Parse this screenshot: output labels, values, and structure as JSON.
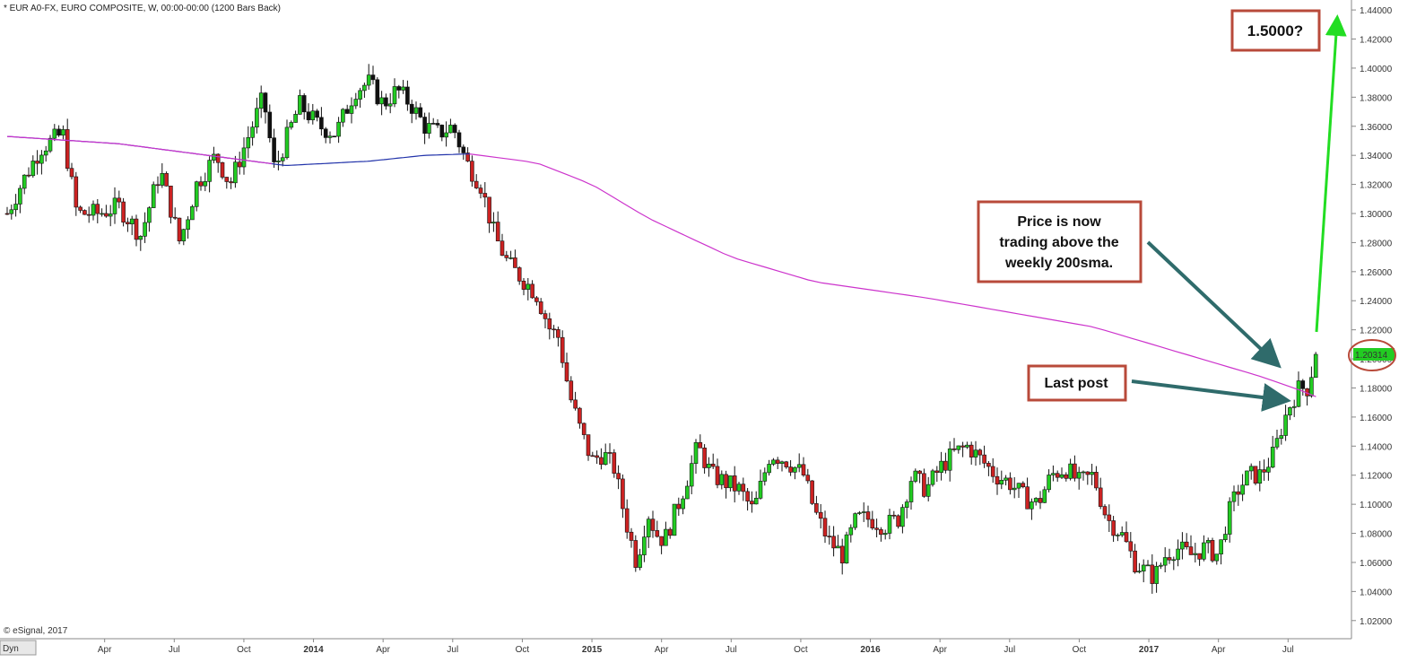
{
  "header": {
    "title": "* EUR A0-FX, EURO COMPOSITE, W, 00:00-00:00 (1200 Bars Back)"
  },
  "footer": {
    "copyright": "© eSignal, 2017",
    "dyn_label": "Dyn"
  },
  "price_tag": {
    "value": "1.20314"
  },
  "colors": {
    "up": "#22cc22",
    "down": "#cc2222",
    "sma_above": "#cc33cc",
    "sma_below": "#2233aa",
    "arrow_teal": "#2f6b6b",
    "arrow_green": "#22dd22",
    "callout_border": "#b84a3a"
  },
  "annotations": {
    "target": "1.5000?",
    "price_note": [
      "Price is now",
      "trading above the",
      "weekly 200sma."
    ],
    "last_post": "Last post"
  },
  "chart_data": {
    "type": "candlestick",
    "title": "* EUR A0-FX, EURO COMPOSITE, W, 00:00-00:00 (1200 Bars Back)",
    "ylim": [
      1.01,
      1.445
    ],
    "y_ticks": [
      "1.44000",
      "1.42000",
      "1.40000",
      "1.38000",
      "1.36000",
      "1.34000",
      "1.32000",
      "1.30000",
      "1.28000",
      "1.26000",
      "1.24000",
      "1.22000",
      "1.20000",
      "1.18000",
      "1.16000",
      "1.14000",
      "1.12000",
      "1.10000",
      "1.08000",
      "1.06000",
      "1.04000",
      "1.02000"
    ],
    "x_ticks": [
      {
        "label": "Apr",
        "t": 0.35,
        "bold": false
      },
      {
        "label": "Jul",
        "t": 0.6,
        "bold": false
      },
      {
        "label": "Oct",
        "t": 0.85,
        "bold": false
      },
      {
        "label": "2014",
        "t": 1.1,
        "bold": true
      },
      {
        "label": "Apr",
        "t": 1.35,
        "bold": false
      },
      {
        "label": "Jul",
        "t": 1.6,
        "bold": false
      },
      {
        "label": "Oct",
        "t": 1.85,
        "bold": false
      },
      {
        "label": "2015",
        "t": 2.1,
        "bold": true
      },
      {
        "label": "Apr",
        "t": 2.35,
        "bold": false
      },
      {
        "label": "Jul",
        "t": 2.6,
        "bold": false
      },
      {
        "label": "Oct",
        "t": 2.85,
        "bold": false
      },
      {
        "label": "2016",
        "t": 3.1,
        "bold": true
      },
      {
        "label": "Apr",
        "t": 3.35,
        "bold": false
      },
      {
        "label": "Jul",
        "t": 3.6,
        "bold": false
      },
      {
        "label": "Oct",
        "t": 3.85,
        "bold": false
      },
      {
        "label": "2017",
        "t": 4.1,
        "bold": true
      },
      {
        "label": "Apr",
        "t": 4.35,
        "bold": false
      },
      {
        "label": "Jul",
        "t": 4.6,
        "bold": false
      }
    ],
    "close_path": [
      [
        0.0,
        1.3
      ],
      [
        0.05,
        1.32
      ],
      [
        0.12,
        1.345
      ],
      [
        0.2,
        1.355
      ],
      [
        0.25,
        1.3
      ],
      [
        0.33,
        1.3
      ],
      [
        0.4,
        1.305
      ],
      [
        0.48,
        1.285
      ],
      [
        0.55,
        1.33
      ],
      [
        0.62,
        1.28
      ],
      [
        0.68,
        1.32
      ],
      [
        0.75,
        1.34
      ],
      [
        0.8,
        1.32
      ],
      [
        0.88,
        1.36
      ],
      [
        0.92,
        1.38
      ],
      [
        0.96,
        1.33
      ],
      [
        1.05,
        1.375
      ],
      [
        1.12,
        1.36
      ],
      [
        1.18,
        1.355
      ],
      [
        1.25,
        1.385
      ],
      [
        1.3,
        1.39
      ],
      [
        1.35,
        1.375
      ],
      [
        1.4,
        1.385
      ],
      [
        1.45,
        1.375
      ],
      [
        1.5,
        1.36
      ],
      [
        1.55,
        1.355
      ],
      [
        1.6,
        1.36
      ],
      [
        1.65,
        1.335
      ],
      [
        1.7,
        1.32
      ],
      [
        1.75,
        1.285
      ],
      [
        1.8,
        1.265
      ],
      [
        1.85,
        1.255
      ],
      [
        1.9,
        1.245
      ],
      [
        1.95,
        1.22
      ],
      [
        1.98,
        1.215
      ],
      [
        2.02,
        1.175
      ],
      [
        2.06,
        1.15
      ],
      [
        2.1,
        1.13
      ],
      [
        2.14,
        1.135
      ],
      [
        2.18,
        1.125
      ],
      [
        2.22,
        1.09
      ],
      [
        2.26,
        1.06
      ],
      [
        2.3,
        1.095
      ],
      [
        2.33,
        1.08
      ],
      [
        2.36,
        1.075
      ],
      [
        2.42,
        1.105
      ],
      [
        2.48,
        1.14
      ],
      [
        2.53,
        1.12
      ],
      [
        2.58,
        1.115
      ],
      [
        2.63,
        1.11
      ],
      [
        2.68,
        1.095
      ],
      [
        2.74,
        1.135
      ],
      [
        2.8,
        1.13
      ],
      [
        2.86,
        1.12
      ],
      [
        2.9,
        1.095
      ],
      [
        2.95,
        1.075
      ],
      [
        3.0,
        1.065
      ],
      [
        3.05,
        1.09
      ],
      [
        3.1,
        1.09
      ],
      [
        3.15,
        1.085
      ],
      [
        3.2,
        1.09
      ],
      [
        3.25,
        1.12
      ],
      [
        3.3,
        1.11
      ],
      [
        3.35,
        1.125
      ],
      [
        3.4,
        1.135
      ],
      [
        3.45,
        1.14
      ],
      [
        3.5,
        1.13
      ],
      [
        3.55,
        1.12
      ],
      [
        3.6,
        1.115
      ],
      [
        3.65,
        1.105
      ],
      [
        3.7,
        1.1
      ],
      [
        3.75,
        1.12
      ],
      [
        3.8,
        1.125
      ],
      [
        3.85,
        1.115
      ],
      [
        3.9,
        1.12
      ],
      [
        3.95,
        1.09
      ],
      [
        4.0,
        1.08
      ],
      [
        4.05,
        1.06
      ],
      [
        4.08,
        1.055
      ],
      [
        4.12,
        1.05
      ],
      [
        4.16,
        1.065
      ],
      [
        4.2,
        1.07
      ],
      [
        4.25,
        1.065
      ],
      [
        4.3,
        1.07
      ],
      [
        4.35,
        1.065
      ],
      [
        4.38,
        1.09
      ],
      [
        4.42,
        1.11
      ],
      [
        4.46,
        1.12
      ],
      [
        4.5,
        1.12
      ],
      [
        4.55,
        1.135
      ],
      [
        4.58,
        1.155
      ],
      [
        4.61,
        1.17
      ],
      [
        4.64,
        1.18
      ],
      [
        4.67,
        1.18
      ],
      [
        4.7,
        1.2031
      ]
    ],
    "sma_200": [
      [
        0.0,
        1.353
      ],
      [
        0.4,
        1.348
      ],
      [
        0.8,
        1.338
      ],
      [
        1.0,
        1.333
      ],
      [
        1.3,
        1.336
      ],
      [
        1.5,
        1.34
      ],
      [
        1.66,
        1.341
      ],
      [
        1.9,
        1.335
      ],
      [
        2.1,
        1.32
      ],
      [
        2.3,
        1.297
      ],
      [
        2.6,
        1.27
      ],
      [
        2.9,
        1.253
      ],
      [
        3.3,
        1.242
      ],
      [
        3.6,
        1.232
      ],
      [
        3.9,
        1.222
      ],
      [
        4.2,
        1.205
      ],
      [
        4.5,
        1.188
      ],
      [
        4.65,
        1.178
      ],
      [
        4.7,
        1.174
      ]
    ],
    "sma_crossings": [
      0.95,
      1.66
    ],
    "ohlc_ref_last": {
      "close": 1.20314
    }
  }
}
